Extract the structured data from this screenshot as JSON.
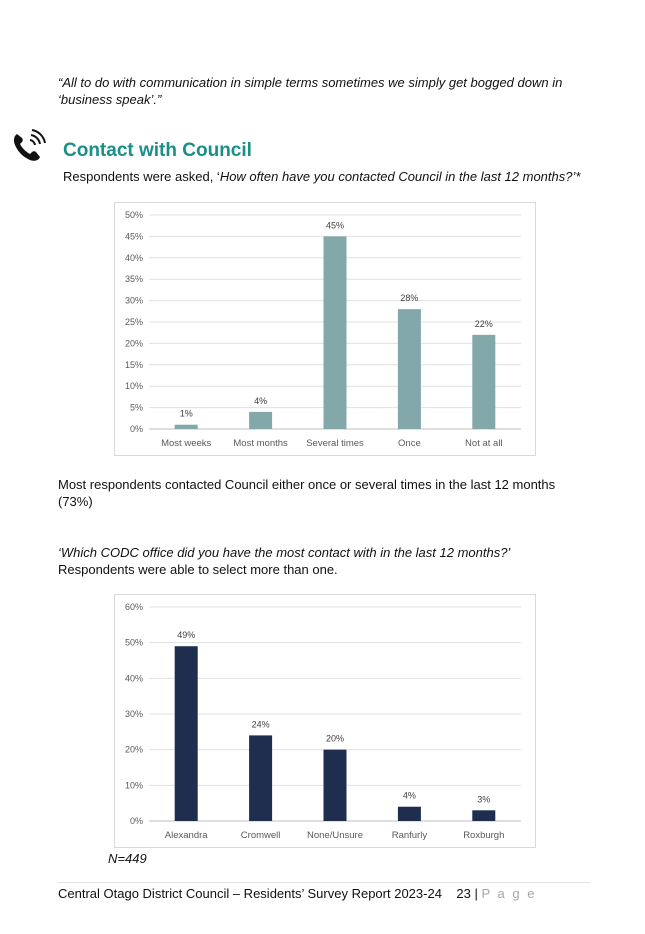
{
  "quote": "“All to do with communication in simple terms sometimes we simply get bogged down in ‘business speak’.”",
  "section": {
    "title": "Contact with Council",
    "intro_prefix": "Respondents were asked, ‘",
    "intro_question": "How often have you contacted Council in the last 12 months?’*"
  },
  "summary": "Most respondents contacted Council either once or several times in the last 12 months (73%)",
  "question2": {
    "text": "‘Which CODC office did you have the most contact with in the last 12 months?’",
    "note": "Respondents were able to select more than one."
  },
  "sample_size": "N=449",
  "footer": {
    "text": "Central Otago District Council – Residents’ Survey Report 2023-24",
    "page_number": "23",
    "separator": "|",
    "page_word": "P a g e"
  },
  "icons": {
    "phone": "phone-ringing-icon"
  },
  "colors": {
    "heading": "#1a8f8a",
    "chart1_bar": "#82a8aa",
    "chart2_bar": "#1f2d4e"
  },
  "chart_data": [
    {
      "type": "bar",
      "categories": [
        "Most weeks",
        "Most months",
        "Several times",
        "Once",
        "Not at all"
      ],
      "values": [
        1,
        4,
        45,
        28,
        22
      ],
      "value_labels": [
        "1%",
        "4%",
        "45%",
        "28%",
        "22%"
      ],
      "yticks": [
        "0%",
        "5%",
        "10%",
        "15%",
        "20%",
        "25%",
        "30%",
        "35%",
        "40%",
        "45%",
        "50%"
      ],
      "ylim": [
        0,
        50
      ],
      "title": "",
      "xlabel": "",
      "ylabel": "",
      "grid": true
    },
    {
      "type": "bar",
      "categories": [
        "Alexandra",
        "Cromwell",
        "None/Unsure",
        "Ranfurly",
        "Roxburgh"
      ],
      "values": [
        49,
        24,
        20,
        4,
        3
      ],
      "value_labels": [
        "49%",
        "24%",
        "20%",
        "4%",
        "3%"
      ],
      "yticks": [
        "0%",
        "10%",
        "20%",
        "30%",
        "40%",
        "50%",
        "60%"
      ],
      "ylim": [
        0,
        60
      ],
      "title": "",
      "xlabel": "",
      "ylabel": "",
      "grid": true
    }
  ]
}
